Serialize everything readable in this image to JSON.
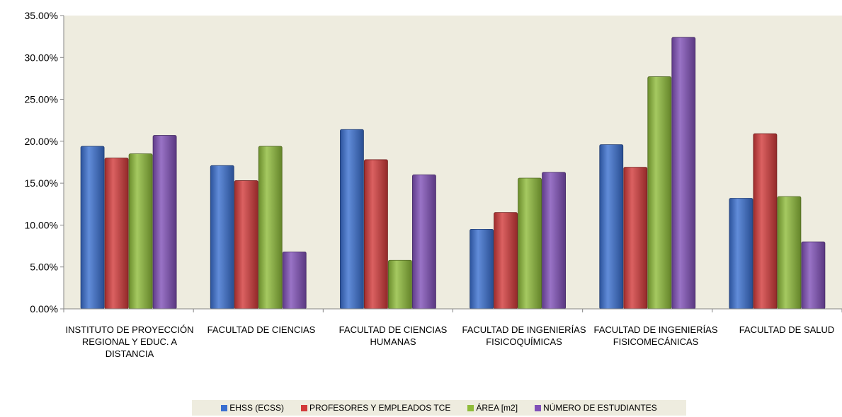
{
  "chart_data": {
    "type": "bar",
    "title": "",
    "xlabel": "",
    "ylabel": "",
    "ylim": [
      0,
      35
    ],
    "y_ticks": [
      "0.00%",
      "5.00%",
      "10.00%",
      "15.00%",
      "20.00%",
      "25.00%",
      "30.00%",
      "35.00%"
    ],
    "grid": false,
    "legend_position": "bottom",
    "categories": [
      "INSTITUTO DE PROYECCIÓN REGIONAL Y EDUC. A DISTANCIA",
      "FACULTAD DE CIENCIAS",
      "FACULTAD DE CIENCIAS HUMANAS",
      "FACULTAD DE INGENIERÍAS FISICOQUÍMICAS",
      "FACULTAD DE INGENIERÍAS FISICOMECÁNICAS",
      "FACULTAD DE SALUD"
    ],
    "series": [
      {
        "name": "EHSS (ECSS)",
        "color": "#3a6fd0",
        "values": [
          19.4,
          17.1,
          21.4,
          9.5,
          19.6,
          13.2
        ]
      },
      {
        "name": "PROFESORES Y EMPLEADOS TCE",
        "color": "#d23a3a",
        "values": [
          18.0,
          15.3,
          17.8,
          11.5,
          16.9,
          20.9
        ]
      },
      {
        "name": "ÁREA [m2]",
        "color": "#8fbc3a",
        "values": [
          18.5,
          19.4,
          5.8,
          15.6,
          27.7,
          13.4
        ]
      },
      {
        "name": "NÚMERO DE ESTUDIANTES",
        "color": "#8050b8",
        "values": [
          20.7,
          6.8,
          16.0,
          16.3,
          32.4,
          8.0
        ]
      }
    ]
  }
}
